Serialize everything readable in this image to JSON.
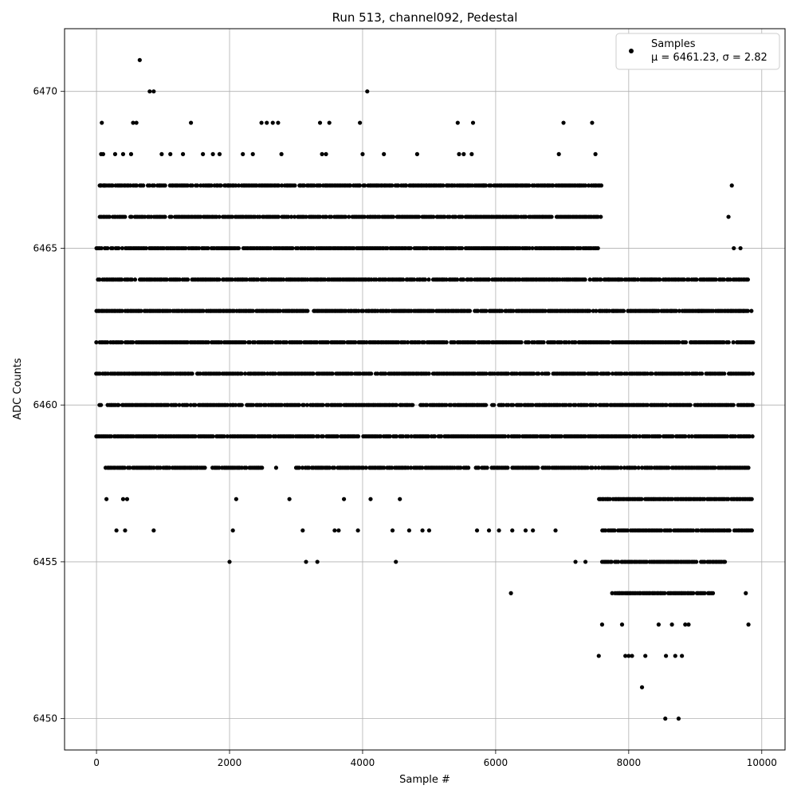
{
  "chart_data": {
    "type": "scatter",
    "title": "Run 513, channel092, Pedestal",
    "xlabel": "Sample #",
    "ylabel": "ADC Counts",
    "xlim": [
      -480,
      10350
    ],
    "ylim": [
      6449,
      6472
    ],
    "x_ticks": [
      0,
      2000,
      4000,
      6000,
      8000,
      10000
    ],
    "y_ticks": [
      6450,
      6455,
      6460,
      6465,
      6470
    ],
    "grid": true,
    "legend_position": "top-right",
    "marker_color": "#000000",
    "series": [
      {
        "name": "Samples",
        "stats_label": "μ = 6461.23, σ = 2.82",
        "level_ranges": [
          {
            "y": 6459,
            "ranges": [
              [
                0,
                9870
              ]
            ]
          },
          {
            "y": 6460,
            "ranges": [
              [
                0,
                9870
              ]
            ]
          },
          {
            "y": 6461,
            "ranges": [
              [
                0,
                9870
              ]
            ]
          },
          {
            "y": 6462,
            "ranges": [
              [
                0,
                9870
              ]
            ]
          },
          {
            "y": 6463,
            "ranges": [
              [
                0,
                9870
              ]
            ]
          },
          {
            "y": 6464,
            "ranges": [
              [
                0,
                9850
              ]
            ]
          },
          {
            "y": 6465,
            "ranges": [
              [
                0,
                7550
              ]
            ]
          },
          {
            "y": 6466,
            "ranges": [
              [
                50,
                7550
              ]
            ]
          },
          {
            "y": 6467,
            "ranges": [
              [
                50,
                7600
              ]
            ]
          },
          {
            "y": 6458,
            "ranges": [
              [
                140,
                2500
              ],
              [
                3000,
                5600
              ],
              [
                5700,
                9870
              ]
            ]
          },
          {
            "y": 6457,
            "ranges": [
              [
                7550,
                9870
              ]
            ]
          },
          {
            "y": 6456,
            "ranges": [
              [
                7600,
                9870
              ]
            ]
          },
          {
            "y": 6455,
            "ranges": [
              [
                7600,
                9450
              ]
            ]
          },
          {
            "y": 6454,
            "ranges": [
              [
                7750,
                9300
              ]
            ]
          }
        ],
        "points": [
          [
            10,
            6459
          ],
          [
            40,
            6465
          ],
          [
            80,
            6469
          ],
          [
            70,
            6468
          ],
          [
            100,
            6468
          ],
          [
            60,
            6467
          ],
          [
            120,
            6467
          ],
          [
            150,
            6457
          ],
          [
            300,
            6456
          ],
          [
            430,
            6456
          ],
          [
            400,
            6457
          ],
          [
            460,
            6457
          ],
          [
            280,
            6468
          ],
          [
            400,
            6468
          ],
          [
            520,
            6468
          ],
          [
            550,
            6469
          ],
          [
            600,
            6469
          ],
          [
            650,
            6471
          ],
          [
            800,
            6470
          ],
          [
            860,
            6470
          ],
          [
            790,
            6458
          ],
          [
            860,
            6456
          ],
          [
            980,
            6468
          ],
          [
            1050,
            6458
          ],
          [
            1110,
            6468
          ],
          [
            1300,
            6468
          ],
          [
            1420,
            6469
          ],
          [
            1520,
            6458
          ],
          [
            1600,
            6468
          ],
          [
            1750,
            6468
          ],
          [
            1850,
            6468
          ],
          [
            1980,
            6467
          ],
          [
            2000,
            6455
          ],
          [
            2050,
            6456
          ],
          [
            2100,
            6457
          ],
          [
            2200,
            6468
          ],
          [
            2350,
            6468
          ],
          [
            2480,
            6469
          ],
          [
            2560,
            6469
          ],
          [
            2650,
            6469
          ],
          [
            2730,
            6469
          ],
          [
            2780,
            6468
          ],
          [
            2700,
            6458
          ],
          [
            2900,
            6457
          ],
          [
            3100,
            6456
          ],
          [
            3150,
            6455
          ],
          [
            3320,
            6455
          ],
          [
            3360,
            6469
          ],
          [
            3500,
            6469
          ],
          [
            3390,
            6468
          ],
          [
            3450,
            6468
          ],
          [
            3580,
            6456
          ],
          [
            3640,
            6456
          ],
          [
            3720,
            6457
          ],
          [
            3930,
            6456
          ],
          [
            3960,
            6469
          ],
          [
            4000,
            6468
          ],
          [
            4070,
            6470
          ],
          [
            4120,
            6457
          ],
          [
            4320,
            6468
          ],
          [
            4450,
            6456
          ],
          [
            4500,
            6455
          ],
          [
            4560,
            6457
          ],
          [
            4700,
            6456
          ],
          [
            4820,
            6468
          ],
          [
            4900,
            6456
          ],
          [
            5000,
            6456
          ],
          [
            5430,
            6469
          ],
          [
            5450,
            6468
          ],
          [
            5520,
            6468
          ],
          [
            5660,
            6469
          ],
          [
            5640,
            6468
          ],
          [
            5820,
            6467
          ],
          [
            5720,
            6456
          ],
          [
            5900,
            6456
          ],
          [
            6010,
            6466
          ],
          [
            6050,
            6456
          ],
          [
            6230,
            6454
          ],
          [
            6250,
            6456
          ],
          [
            6300,
            6466
          ],
          [
            6450,
            6456
          ],
          [
            6560,
            6456
          ],
          [
            6700,
            6466
          ],
          [
            6900,
            6456
          ],
          [
            6950,
            6468
          ],
          [
            7020,
            6469
          ],
          [
            7200,
            6455
          ],
          [
            7350,
            6455
          ],
          [
            7450,
            6469
          ],
          [
            7500,
            6468
          ],
          [
            7550,
            6452
          ],
          [
            7600,
            6453
          ],
          [
            7580,
            6466
          ],
          [
            7700,
            6464
          ],
          [
            7770,
            6463
          ],
          [
            7850,
            6464
          ],
          [
            7900,
            6453
          ],
          [
            7950,
            6452
          ],
          [
            8000,
            6452
          ],
          [
            8050,
            6452
          ],
          [
            8100,
            6464
          ],
          [
            8200,
            6451
          ],
          [
            8180,
            6463
          ],
          [
            8250,
            6452
          ],
          [
            8340,
            6464
          ],
          [
            8360,
            6463
          ],
          [
            8450,
            6453
          ],
          [
            8550,
            6450
          ],
          [
            8560,
            6452
          ],
          [
            8640,
            6463
          ],
          [
            8650,
            6453
          ],
          [
            8700,
            6452
          ],
          [
            8750,
            6450
          ],
          [
            8800,
            6452
          ],
          [
            8850,
            6453
          ],
          [
            8900,
            6453
          ],
          [
            9050,
            6463
          ],
          [
            9100,
            6463
          ],
          [
            9500,
            6466
          ],
          [
            9550,
            6467
          ],
          [
            9580,
            6465
          ],
          [
            9680,
            6465
          ],
          [
            9760,
            6454
          ],
          [
            9800,
            6453
          ],
          [
            9720,
            6463
          ],
          [
            9540,
            6463
          ],
          [
            9620,
            6463
          ],
          [
            9660,
            6463
          ]
        ]
      }
    ]
  }
}
